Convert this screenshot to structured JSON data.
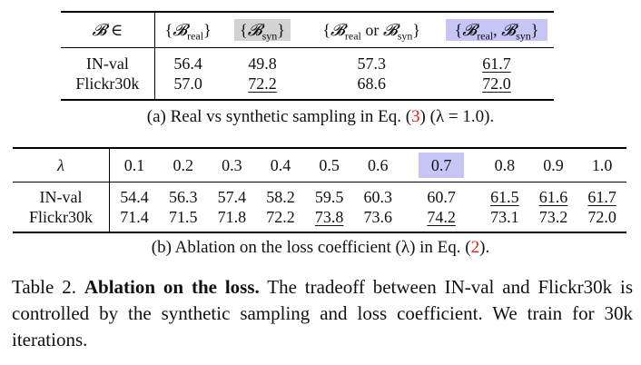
{
  "table_a": {
    "header": [
      "𝓑 ∈",
      "{𝓑real}",
      "{𝓑syn}",
      "{𝓑real or 𝓑syn}",
      "{𝓑real, 𝓑syn}"
    ],
    "rows": [
      {
        "label": "IN-val",
        "values": [
          "56.4",
          "49.8",
          "57.3",
          "61.7"
        ]
      },
      {
        "label": "Flickr30k",
        "values": [
          "57.0",
          "72.2",
          "68.6",
          "72.0"
        ]
      }
    ],
    "caption_text": "(a) Real vs synthetic sampling in Eq. (",
    "caption_ref": "3",
    "caption_tail": ") (λ = 1.0)."
  },
  "table_b": {
    "header_label": "λ",
    "lambdas": [
      "0.1",
      "0.2",
      "0.3",
      "0.4",
      "0.5",
      "0.6",
      "0.7",
      "0.8",
      "0.9",
      "1.0"
    ],
    "rows": [
      {
        "label": "IN-val",
        "values": [
          "54.4",
          "56.3",
          "57.4",
          "58.2",
          "59.5",
          "60.3",
          "60.7",
          "61.5",
          "61.6",
          "61.7"
        ]
      },
      {
        "label": "Flickr30k",
        "values": [
          "71.4",
          "71.5",
          "71.8",
          "72.2",
          "73.8",
          "73.6",
          "74.2",
          "73.1",
          "73.2",
          "72.0"
        ]
      }
    ],
    "caption_text": "(b) Ablation on the loss coefficient (λ) in Eq. (",
    "caption_ref": "2",
    "caption_tail": ")."
  },
  "main_caption": {
    "prefix": "Table 2. ",
    "title": "Ablation on the loss.",
    "body": " The tradeoff between IN-val and Flickr30k is controlled by the synthetic sampling and loss coefficient. We train for 30k iterations."
  },
  "colors": {
    "highlight_blue": "#c7c4f6",
    "highlight_gray": "#d3d3d3",
    "ref_red": "#d6221a"
  }
}
